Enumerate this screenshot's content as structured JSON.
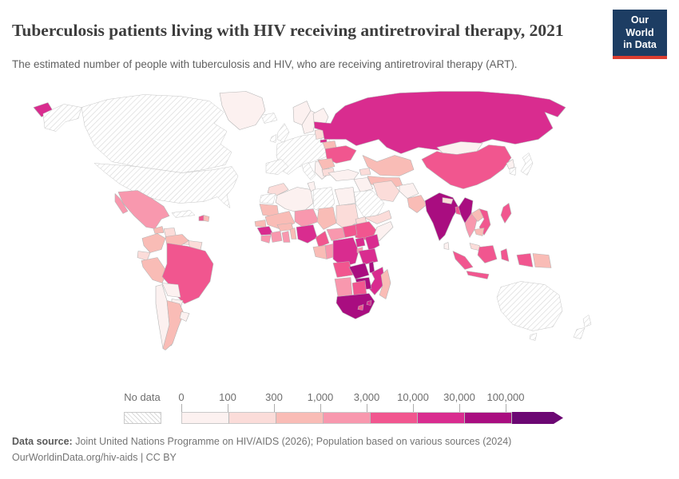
{
  "header": {
    "title": "Tuberculosis patients living with HIV receiving antiretroviral therapy, 2021",
    "subtitle": "The estimated number of people with tuberculosis and HIV, who are receiving antiretroviral therapy (ART).",
    "logo": {
      "line1": "Our World",
      "line2": "in Data",
      "bg_color": "#1d3d63",
      "accent_color": "#dc3e31"
    }
  },
  "legend": {
    "no_data_label": "No data",
    "tick_labels": [
      "0",
      "100",
      "300",
      "1,000",
      "3,000",
      "10,000",
      "30,000",
      "100,000"
    ]
  },
  "footer": {
    "source_label": "Data source:",
    "source_text": " Joint United Nations Programme on HIV/AIDS (2026); Population based on various sources (2024)",
    "link_text": "OurWorldinData.org/hiv-aids",
    "license_suffix": " | CC BY"
  },
  "chart_data": {
    "type": "choropleth-map",
    "title": "Tuberculosis patients living with HIV receiving antiretroviral therapy",
    "year": 2021,
    "unit": "people with TB and HIV receiving ART",
    "no_data_style": "diagonal-hatch",
    "bins": [
      {
        "label": "0–100",
        "color": "#fcf1f0"
      },
      {
        "label": "100–300",
        "color": "#fbdcd9"
      },
      {
        "label": "300–1,000",
        "color": "#f9bcb6"
      },
      {
        "label": "1,000–3,000",
        "color": "#f898ae"
      },
      {
        "label": "3,000–10,000",
        "color": "#f1568f"
      },
      {
        "label": "10,000–30,000",
        "color": "#d92c8f"
      },
      {
        "label": "30,000–100,000",
        "color": "#a90d80"
      },
      {
        "label": "100,000+",
        "color": "#6c0773"
      }
    ],
    "countries": {
      "canada": "no-data",
      "united-states": "no-data",
      "greenland": 0,
      "mexico": 3,
      "guatemala": 2,
      "honduras": 1,
      "panama": 1,
      "cuba": "no-data",
      "haiti": 4,
      "dominican-republic": 2,
      "colombia": 2,
      "venezuela": 2,
      "guyana": 1,
      "ecuador": 1,
      "peru": 2,
      "brazil": 4,
      "bolivia": 0,
      "paraguay": 0,
      "chile": 0,
      "argentina": 2,
      "uruguay": 0,
      "iceland": "no-data",
      "united-kingdom": "no-data",
      "ireland": "no-data",
      "norway": 0,
      "sweden": 0,
      "finland": 0,
      "western-europe": "no-data",
      "spain-portugal": "no-data",
      "italy": "no-data",
      "balkans": 0,
      "baltics": 1,
      "latvia": 5,
      "belarus": 2,
      "ukraine": 4,
      "romania": 2,
      "bulgaria": 1,
      "russia": 5,
      "kazakhstan": 2,
      "uzbekistan": 2,
      "georgia-azerbaijan": 1,
      "turkey": 0,
      "iraq-syria": 0,
      "iran": 1,
      "saudi-arabia": "no-data",
      "yemen": 1,
      "afghanistan": 0,
      "pakistan": 2,
      "india": 6,
      "nepal": 1,
      "bangladesh": 4,
      "sri-lanka": 0,
      "mongolia": 0,
      "china": 4,
      "north-korea": 0,
      "south-korea": "no-data",
      "japan": "no-data",
      "myanmar": 6,
      "thailand": 3,
      "laos": 2,
      "vietnam": 4,
      "cambodia": 2,
      "malaysia": 1,
      "philippines": 4,
      "indonesia": 4,
      "papua-new-guinea": 2,
      "australia": "no-data",
      "new-zealand": "no-data",
      "morocco": 1,
      "western-sahara": "no-data",
      "algeria": 0,
      "tunisia": 0,
      "libya": "no-data",
      "egypt": 0,
      "mauritania": 2,
      "mali": 2,
      "niger": 3,
      "chad": 2,
      "sudan": 1,
      "eritrea": 1,
      "ethiopia": 4,
      "somalia": 0,
      "senegal": 2,
      "guinea": 5,
      "sierra-leone-liberia": 3,
      "cote-divoire": 3,
      "ghana": 3,
      "burkina-faso": 2,
      "benin-togo": 2,
      "nigeria": 5,
      "cameroon": 4,
      "central-african-republic": 3,
      "south-sudan": 4,
      "gabon": 2,
      "congo": 3,
      "democratic-republic-of-congo": 5,
      "uganda": 5,
      "kenya": 5,
      "rwanda-burundi": 3,
      "tanzania": 5,
      "angola": 4,
      "zambia": 6,
      "malawi": 6,
      "mozambique": 5,
      "zimbabwe": 6,
      "namibia": 3,
      "botswana": 4,
      "south-africa": 6,
      "lesotho": 4,
      "eswatini": 5,
      "madagascar": 2
    }
  }
}
